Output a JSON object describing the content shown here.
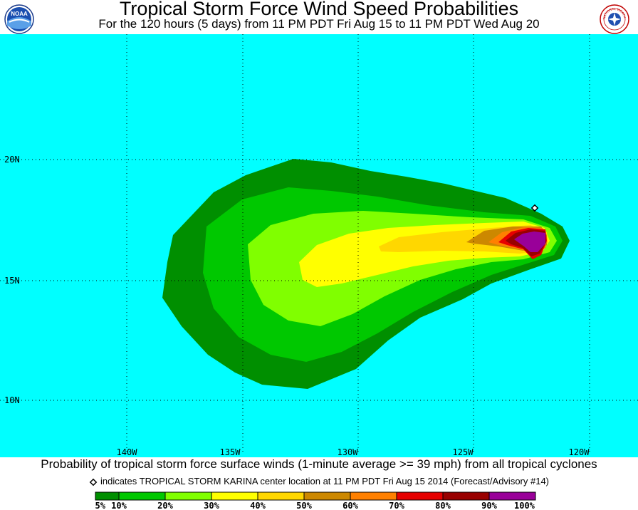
{
  "header": {
    "title": "Tropical Storm Force Wind Speed Probabilities",
    "subtitle": "For the 120 hours (5 days) from 11 PM PDT Fri Aug 15 to 11 PM PDT Wed Aug 20",
    "left_logo_text": "NOAA",
    "right_logo_text": "NATIONAL WEATHER SERVICE"
  },
  "map": {
    "colors": {
      "ocean": "#00ffff",
      "p5": "#008f00",
      "p10": "#00c800",
      "p20": "#80ff00",
      "p30": "#ffff00",
      "p40": "#ffd700",
      "p50": "#cc8800",
      "p60": "#ff8000",
      "p70": "#e60000",
      "p80": "#990000",
      "p90": "#990099",
      "center_marker": "#000000"
    },
    "lon_labels": [
      "140W",
      "135W",
      "130W",
      "125W",
      "120W"
    ],
    "lat_labels": [
      "20N",
      "15N",
      "10N"
    ]
  },
  "caption": "Probability of tropical storm force surface winds (1-minute average >= 39 mph) from all tropical cyclones",
  "legend_note": "indicates TROPICAL STORM KARINA center location at 11 PM PDT Fri Aug 15 2014 (Forecast/Advisory #14)",
  "colorbar": {
    "labels": [
      "5%",
      "10%",
      "20%",
      "30%",
      "40%",
      "50%",
      "60%",
      "70%",
      "80%",
      "90%",
      "100%"
    ],
    "colors": [
      "#008f00",
      "#00c800",
      "#80ff00",
      "#ffff00",
      "#ffd700",
      "#cc8800",
      "#ff8000",
      "#e60000",
      "#990000",
      "#990099"
    ]
  }
}
